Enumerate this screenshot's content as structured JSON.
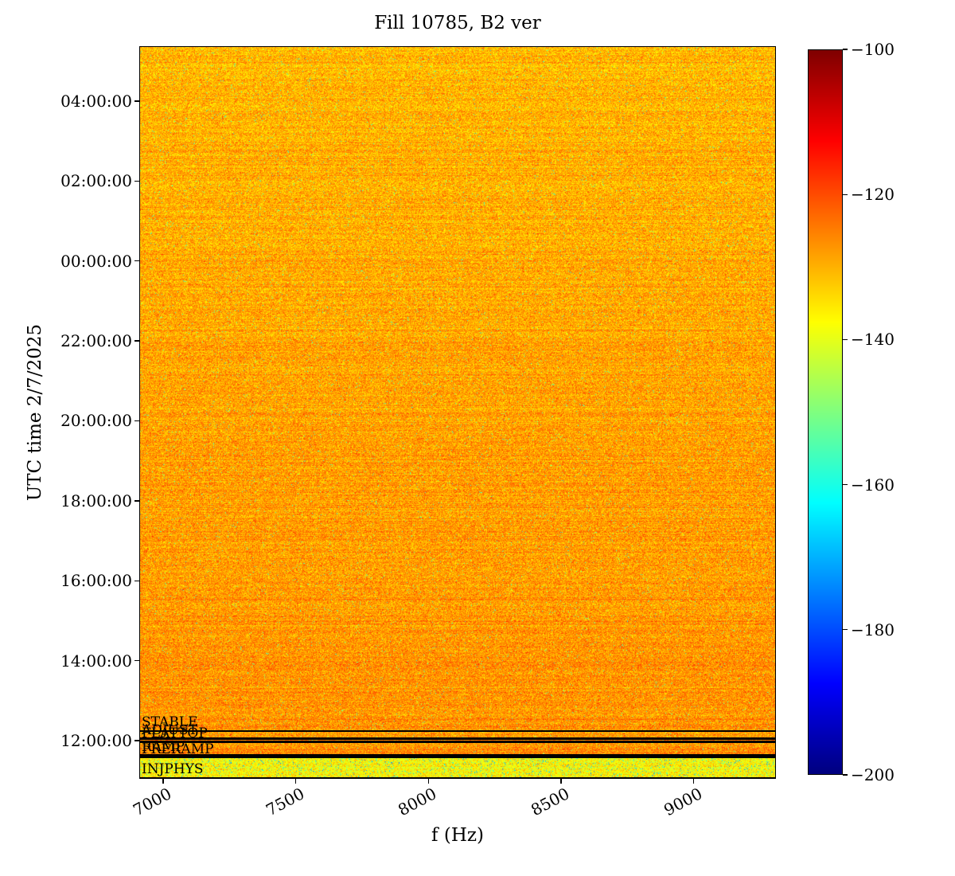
{
  "title": "Fill 10785, B2 ver",
  "axes": {
    "xlabel": "f (Hz)",
    "ylabel": "UTC time 2/7/2025"
  },
  "chart_data": {
    "type": "heatmap",
    "subtype": "spectrogram",
    "title": "Fill 10785, B2 ver",
    "xlabel": "f (Hz)",
    "ylabel": "UTC time 2/7/2025",
    "x_unit": "Hz",
    "x_range": [
      6910,
      9310
    ],
    "x_ticks": [
      7000,
      7500,
      8000,
      8500,
      9000
    ],
    "time_axis": {
      "date": "2/7/2025",
      "start_hour": 11.044,
      "end_hour": 29.374,
      "tick_hours": [
        28,
        26,
        24,
        22,
        20,
        18,
        16,
        14,
        12
      ],
      "tick_labels": [
        "04:00:00",
        "02:00:00",
        "00:00:00",
        "22:00:00",
        "20:00:00",
        "18:00:00",
        "16:00:00",
        "14:00:00",
        "12:00:00"
      ]
    },
    "colormap": "jet",
    "value_range_db": [
      -200,
      -100
    ],
    "colorbar_tick_values": [
      -100,
      -120,
      -140,
      -160,
      -180,
      -200
    ],
    "colorbar_tick_labels": [
      "−100",
      "−120",
      "−140",
      "−160",
      "−180",
      "−200"
    ],
    "grid": false,
    "noise_model": {
      "main_mean_top_db": -130.5,
      "main_mean_bottom_db": -126.5,
      "main_std_db": 3.8,
      "main_green_speckle_prob": 0.015,
      "main_hot_speckle_prob": 0.01,
      "injection_mean_db": -137,
      "injection_std_db": 4.5,
      "injection_speckle_prob": 0.05,
      "injection_end_hour": 11.58
    },
    "beam_mode_annotations": [
      {
        "label": "STABLE",
        "hour": 12.24
      },
      {
        "label": "ADJUST",
        "hour": 12.05
      },
      {
        "label": "FLATTOP",
        "hour": 11.97
      },
      {
        "label": "RAMP",
        "hour": 11.63
      },
      {
        "label": "PRERAMP",
        "hour": 11.58
      },
      {
        "label": "INJPHYS",
        "hour": 11.07
      }
    ]
  }
}
